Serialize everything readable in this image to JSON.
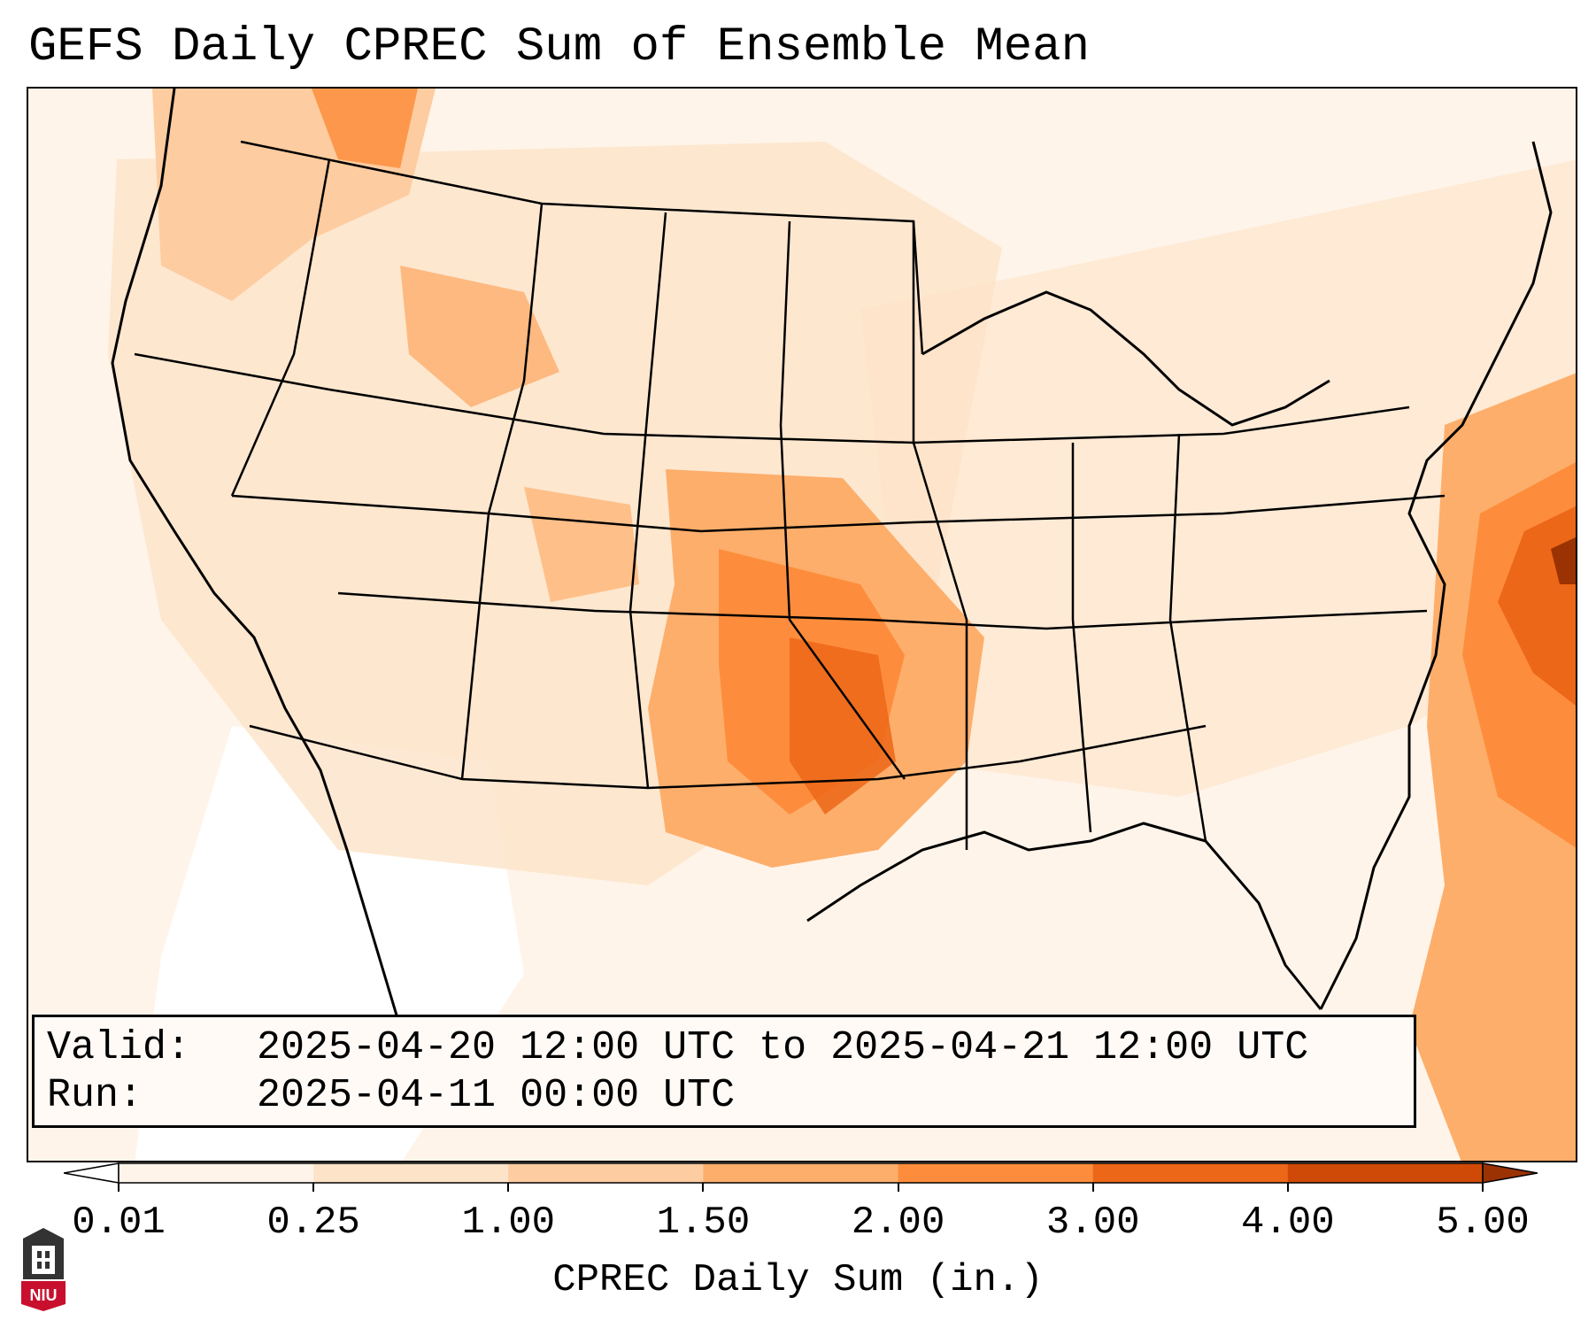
{
  "title": "GEFS Daily CPREC Sum of Ensemble Mean",
  "info": {
    "valid_label": "Valid:",
    "valid_value": "2025-04-20 12:00 UTC to 2025-04-21 12:00 UTC",
    "run_label": "Run:",
    "run_value": "2025-04-11 00:00 UTC"
  },
  "colorbar": {
    "label": "CPREC Daily Sum (in.)",
    "ticks": [
      "0.01",
      "0.25",
      "1.00",
      "1.50",
      "2.00",
      "3.00",
      "4.00",
      "5.00"
    ],
    "colors": [
      "#fff4e9",
      "#fde3c8",
      "#fdcca0",
      "#fdae6b",
      "#fd8d3c",
      "#ec6718",
      "#cf4a06",
      "#9a3203"
    ],
    "extend": "both"
  },
  "logo": {
    "text": "NIU",
    "color": "#c8102e"
  },
  "map": {
    "region": "Contiguous United States",
    "variable": "CPREC",
    "units": "in.",
    "features": [
      "state-boundaries",
      "coastlines",
      "precipitation-shading"
    ]
  }
}
